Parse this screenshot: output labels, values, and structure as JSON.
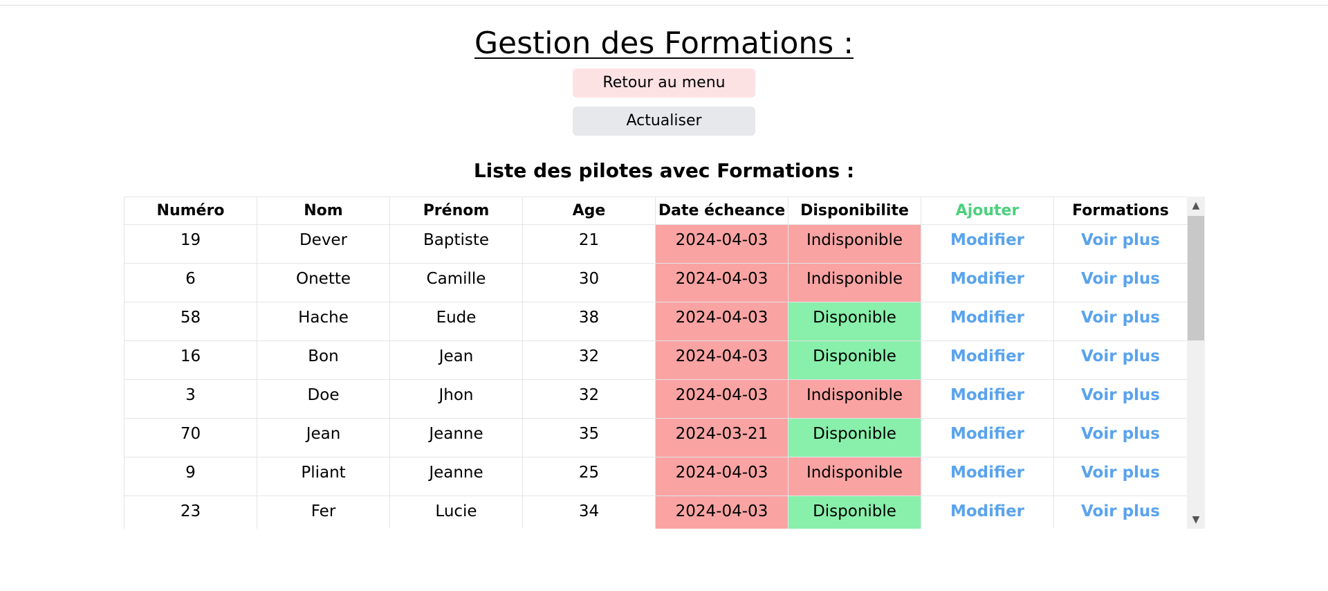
{
  "page": {
    "title": "Gestion des Formations :",
    "buttons": {
      "menu_label": "Retour au menu",
      "refresh_label": "Actualiser"
    },
    "list_title": "Liste des pilotes avec Formations :"
  },
  "table": {
    "headers": {
      "numero": "Numéro",
      "nom": "Nom",
      "prenom": "Prénom",
      "age": "Age",
      "date": "Date écheance",
      "disponibilite": "Disponibilite",
      "ajouter": "Ajouter",
      "formations": "Formations"
    },
    "rows": [
      {
        "numero": "19",
        "nom": "Dever",
        "prenom": "Baptiste",
        "age": "21",
        "date": "2024-04-03",
        "disponibilite": "Indisponible",
        "available": false,
        "modifier": "Modifier",
        "voir": "Voir plus"
      },
      {
        "numero": "6",
        "nom": "Onette",
        "prenom": "Camille",
        "age": "30",
        "date": "2024-04-03",
        "disponibilite": "Indisponible",
        "available": false,
        "modifier": "Modifier",
        "voir": "Voir plus"
      },
      {
        "numero": "58",
        "nom": "Hache",
        "prenom": "Eude",
        "age": "38",
        "date": "2024-04-03",
        "disponibilite": "Disponible",
        "available": true,
        "modifier": "Modifier",
        "voir": "Voir plus"
      },
      {
        "numero": "16",
        "nom": "Bon",
        "prenom": "Jean",
        "age": "32",
        "date": "2024-04-03",
        "disponibilite": "Disponible",
        "available": true,
        "modifier": "Modifier",
        "voir": "Voir plus"
      },
      {
        "numero": "3",
        "nom": "Doe",
        "prenom": "Jhon",
        "age": "32",
        "date": "2024-04-03",
        "disponibilite": "Indisponible",
        "available": false,
        "modifier": "Modifier",
        "voir": "Voir plus"
      },
      {
        "numero": "70",
        "nom": "Jean",
        "prenom": "Jeanne",
        "age": "35",
        "date": "2024-03-21",
        "disponibilite": "Disponible",
        "available": true,
        "modifier": "Modifier",
        "voir": "Voir plus"
      },
      {
        "numero": "9",
        "nom": "Pliant",
        "prenom": "Jeanne",
        "age": "25",
        "date": "2024-04-03",
        "disponibilite": "Indisponible",
        "available": false,
        "modifier": "Modifier",
        "voir": "Voir plus"
      },
      {
        "numero": "23",
        "nom": "Fer",
        "prenom": "Lucie",
        "age": "34",
        "date": "2024-04-03",
        "disponibilite": "Disponible",
        "available": true,
        "modifier": "Modifier",
        "voir": "Voir plus"
      }
    ]
  },
  "colors": {
    "date_bg": "#f9a3a3",
    "available_bg": "#88f0ab",
    "unavailable_bg": "#f9a3a3",
    "link": "#5aa3ec",
    "add_header": "#4cd07d",
    "menu_button_bg": "#fde2e4",
    "refresh_button_bg": "#e7e8ec"
  },
  "icons": {
    "scroll_up": "chevron-up-icon",
    "scroll_down": "chevron-down-icon"
  }
}
